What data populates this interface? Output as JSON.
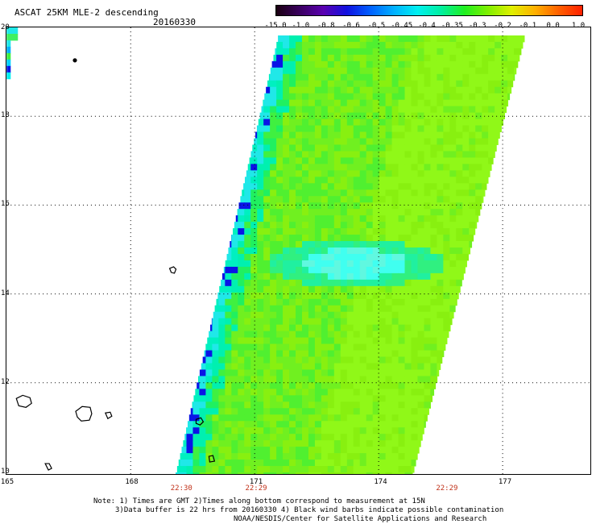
{
  "header": {
    "title": "ASCAT 25KM MLE-2 descending",
    "date": "20160330"
  },
  "colorbar": {
    "labels": [
      "-15.0",
      "-1.0",
      "-0.8",
      "-0.6",
      "-0.5",
      "-0.45",
      "-0.4",
      "-0.35",
      "-0.3",
      "-0.2",
      "-0.1",
      "0.0",
      "1.0"
    ],
    "colors": [
      "#1a0010",
      "#3a0060",
      "#5a00b0",
      "#1010e0",
      "#0060ff",
      "#00b0ff",
      "#00f0f0",
      "#00f0a0",
      "#20f020",
      "#80f000",
      "#e0f000",
      "#ffb000",
      "#ff6000",
      "#ff2000"
    ]
  },
  "map": {
    "lon_ticks": [
      "165",
      "168",
      "171",
      "174",
      "177"
    ],
    "lat_ticks": [
      "20",
      "18",
      "16",
      "14",
      "12",
      "10"
    ],
    "swath_times": [
      {
        "label": "22:30",
        "lon": 169.2
      },
      {
        "label": "22:29",
        "lon": 171.0
      },
      {
        "label": "22:29",
        "lon": 175.6
      }
    ],
    "islands": [
      "island-marker-small",
      "island-east",
      "island-west-1",
      "island-west-2",
      "island-west-3"
    ]
  },
  "notes": {
    "line1": "Note: 1) Times are GMT 2)Times along bottom correspond to measurement at 15N",
    "line2": "3)Data buffer is 22 hrs from 20160330 4) Black wind barbs indicate possible contamination",
    "line3": "NOAA/NESDIS/Center for Satellite Applications and Research"
  }
}
